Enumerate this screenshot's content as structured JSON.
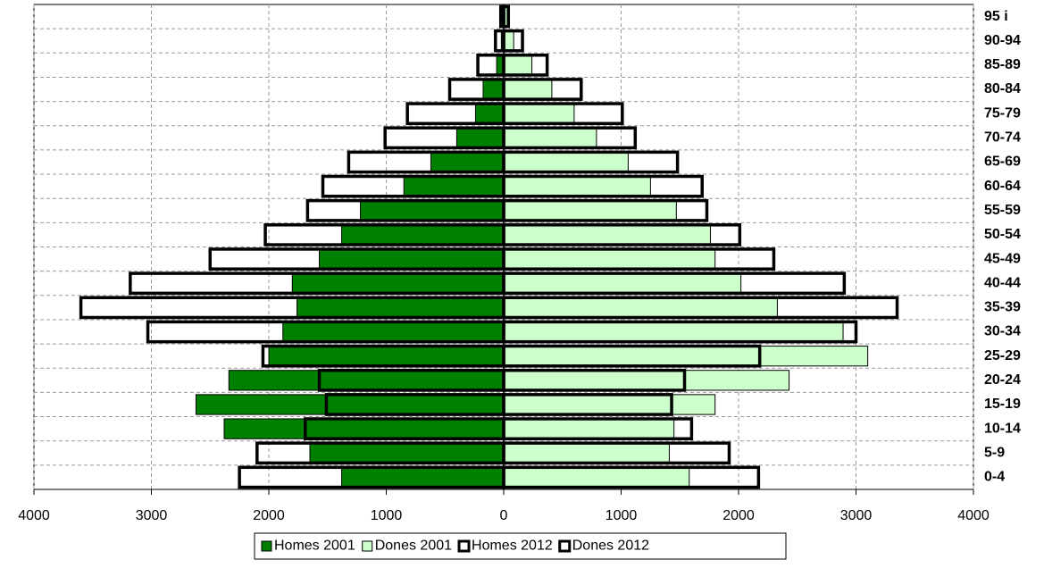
{
  "chart_data": {
    "type": "pyramid",
    "categories": [
      "0-4",
      "5-9",
      "10-14",
      "15-19",
      "20-24",
      "25-29",
      "30-34",
      "35-39",
      "40-44",
      "45-49",
      "50-54",
      "55-59",
      "60-64",
      "65-69",
      "70-74",
      "75-79",
      "80-84",
      "85-89",
      "90-94",
      "95 i"
    ],
    "series": [
      {
        "name": "Homes 2001",
        "color": "#008000",
        "values": [
          -1380,
          -1650,
          -2380,
          -2620,
          -2340,
          -2000,
          -1880,
          -1760,
          -1800,
          -1570,
          -1380,
          -1220,
          -850,
          -620,
          -400,
          -240,
          -175,
          -60,
          -20,
          -10
        ]
      },
      {
        "name": "Dones 2001",
        "color": "#ccffcc",
        "values": [
          1580,
          1410,
          1450,
          1800,
          2430,
          3100,
          2890,
          2330,
          2020,
          1800,
          1760,
          1470,
          1250,
          1060,
          790,
          600,
          410,
          240,
          85,
          30
        ]
      },
      {
        "name": "Homes 2012",
        "color": "#ffffff",
        "values": [
          -2250,
          -2100,
          -1690,
          -1510,
          -1570,
          -2050,
          -3030,
          -3600,
          -3180,
          -2500,
          -2030,
          -1670,
          -1540,
          -1320,
          -1010,
          -820,
          -460,
          -220,
          -70,
          -25
        ]
      },
      {
        "name": "Dones 2012",
        "color": "#ffffff",
        "values": [
          2170,
          1920,
          1600,
          1430,
          1540,
          2180,
          3000,
          3350,
          2900,
          2300,
          2010,
          1730,
          1690,
          1480,
          1120,
          1010,
          660,
          370,
          160,
          40
        ]
      }
    ],
    "xlim": [
      -4000,
      4000
    ],
    "xticks": [
      {
        "value": -4000,
        "label": "4000"
      },
      {
        "value": -3000,
        "label": "3000"
      },
      {
        "value": -2000,
        "label": "2000"
      },
      {
        "value": -1000,
        "label": "1000"
      },
      0,
      1000,
      2000,
      3000,
      4000
    ],
    "grid": true
  }
}
